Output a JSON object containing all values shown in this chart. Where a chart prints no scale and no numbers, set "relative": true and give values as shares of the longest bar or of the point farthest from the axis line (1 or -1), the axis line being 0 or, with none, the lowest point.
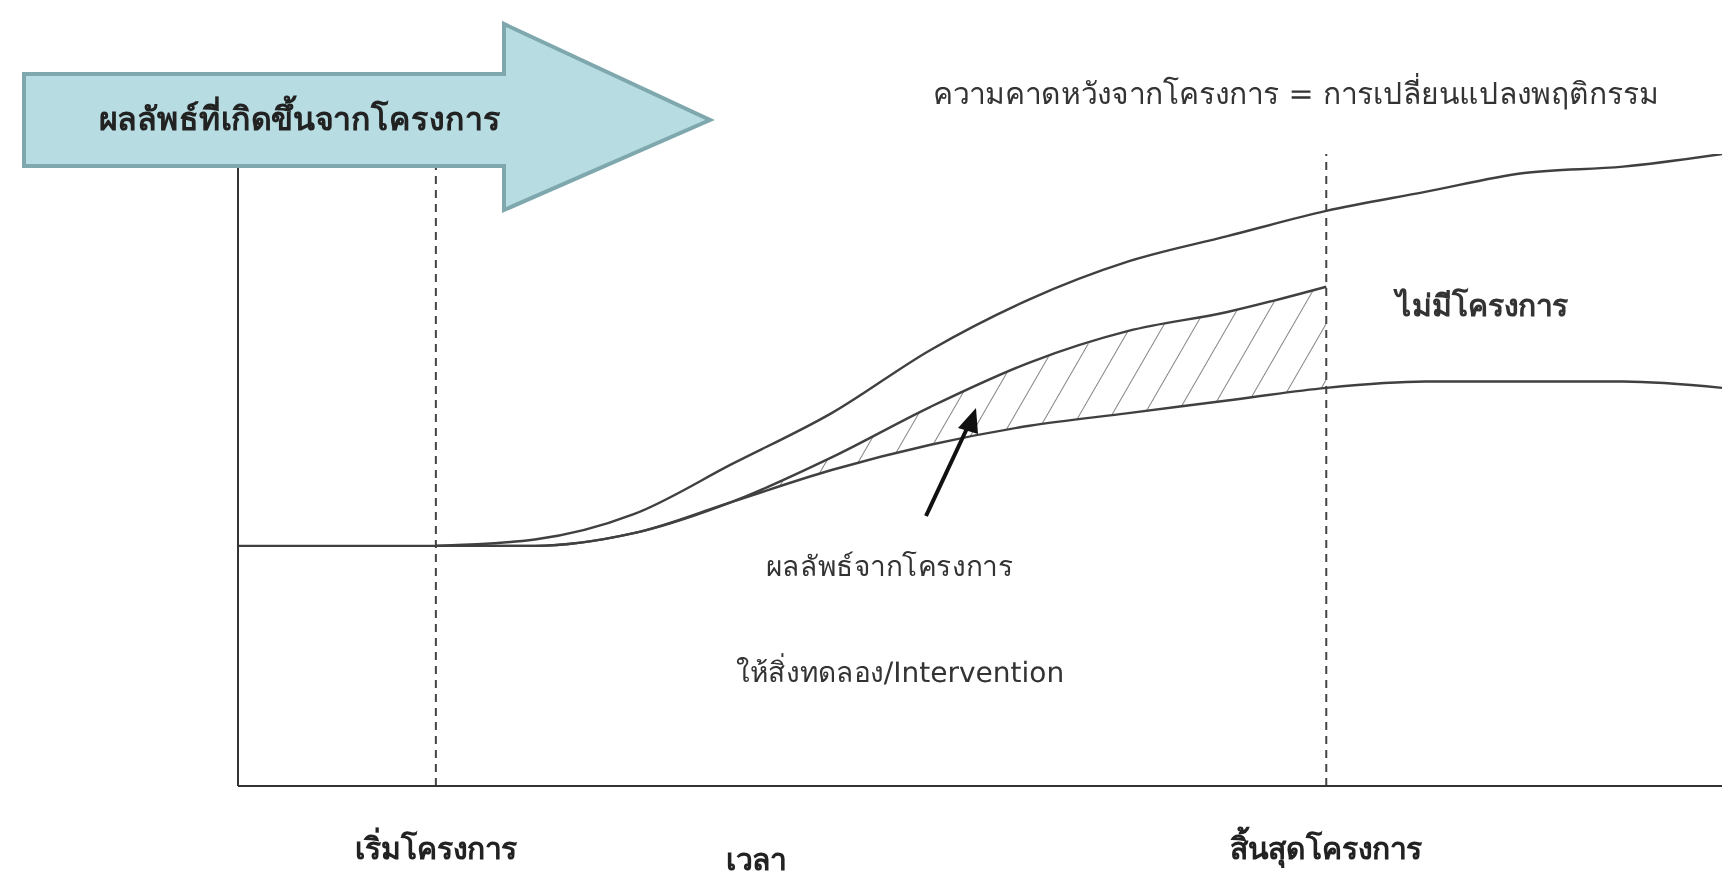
{
  "chart_data": {
    "type": "line",
    "relative": true,
    "ylabel": "ผลลัพธ์ที่เกิดขึ้นจากโครงการ",
    "xlabel": "เวลา",
    "categories": [
      null,
      null,
      "เริ่มโครงการ",
      null,
      null,
      null,
      null,
      null,
      null,
      null,
      null,
      "สิ้นสุดโครงการ",
      null,
      null,
      null,
      null
    ],
    "series": [
      {
        "color": "#404040",
        "values": [
          null,
          null,
          0.38,
          0.39,
          0.43,
          0.51,
          0.59,
          0.69,
          0.77,
          0.83,
          0.87,
          0.91,
          0.94,
          0.97,
          0.98,
          1
        ]
      },
      {
        "color": "#404040",
        "values": [
          null,
          null,
          0.38,
          0.38,
          0.4,
          0.45,
          0.52,
          0.6,
          0.67,
          0.72,
          0.75,
          0.79,
          null,
          null,
          null,
          null
        ],
        "lower": [
          null,
          null,
          0.38,
          0.38,
          0.4,
          0.45,
          0.5,
          0.54,
          0.57,
          0.59,
          0.61,
          0.63,
          null,
          null,
          null,
          null
        ],
        "upper": [
          null,
          null,
          0.38,
          0.38,
          0.4,
          0.45,
          0.52,
          0.6,
          0.67,
          0.72,
          0.75,
          0.79,
          null,
          null,
          null,
          null
        ]
      },
      {
        "color": "#404040",
        "values": [
          0.38,
          0.38,
          0.38,
          0.38,
          0.4,
          0.45,
          0.5,
          0.54,
          0.57,
          0.59,
          0.61,
          0.63,
          0.64,
          0.64,
          0.64,
          0.63
        ]
      }
    ],
    "ref_lines": [
      {
        "axis": "x",
        "value": "เริ่มโครงการ",
        "line_style": "dashed"
      },
      {
        "axis": "x",
        "value": "สิ้นสุดโครงการ",
        "line_style": "dashed"
      }
    ],
    "annotations": [
      "ความคาดหวังจากโครงการ = การเปลี่ยนแปลงพฤติกรรม",
      "ไม่มีโครงการ",
      "ผลลัพธ์จากโครงการ",
      "ให้สิ่งทดลอง/Intervention"
    ],
    "grid": false,
    "legend": false
  }
}
